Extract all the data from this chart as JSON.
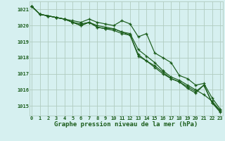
{
  "title": "Graphe pression niveau de la mer (hPa)",
  "background_color": "#d6f0f0",
  "grid_color": "#b0ccc0",
  "line_color": "#1a5c1a",
  "x_ticks": [
    0,
    1,
    2,
    3,
    4,
    5,
    6,
    7,
    8,
    9,
    10,
    11,
    12,
    13,
    14,
    15,
    16,
    17,
    18,
    19,
    20,
    21,
    22,
    23
  ],
  "ylim": [
    1014.4,
    1021.5
  ],
  "yticks": [
    1015,
    1016,
    1017,
    1018,
    1019,
    1020,
    1021
  ],
  "series": [
    [
      1021.2,
      1020.7,
      1020.6,
      1020.5,
      1020.4,
      1020.3,
      1020.2,
      1020.4,
      1020.2,
      1020.1,
      1020.0,
      1020.3,
      1020.1,
      1019.3,
      1019.5,
      1018.3,
      1018.0,
      1017.7,
      1016.9,
      1016.7,
      1016.3,
      1016.4,
      1015.5,
      1014.8
    ],
    [
      1021.2,
      1020.7,
      1020.6,
      1020.5,
      1020.4,
      1020.2,
      1020.1,
      1020.2,
      1020.0,
      1019.9,
      1019.8,
      1019.6,
      1019.5,
      1018.5,
      1018.1,
      1017.7,
      1017.2,
      1016.8,
      1016.6,
      1016.3,
      1016.0,
      1015.7,
      1015.3,
      1014.7
    ],
    [
      1021.2,
      1020.7,
      1020.6,
      1020.5,
      1020.4,
      1020.2,
      1020.0,
      1020.2,
      1019.9,
      1019.8,
      1019.7,
      1019.5,
      1019.4,
      1018.2,
      1017.8,
      1017.5,
      1017.1,
      1016.7,
      1016.5,
      1016.2,
      1015.9,
      1016.3,
      1015.2,
      1014.6
    ],
    [
      1021.2,
      1020.7,
      1020.6,
      1020.5,
      1020.4,
      1020.2,
      1020.0,
      1020.2,
      1019.9,
      1019.8,
      1019.8,
      1019.6,
      1019.4,
      1018.1,
      1017.8,
      1017.4,
      1017.0,
      1016.7,
      1016.5,
      1016.1,
      1015.8,
      1016.3,
      1015.2,
      1014.7
    ]
  ],
  "title_fontsize": 6.5,
  "tick_fontsize": 5.0,
  "title_color": "#1a5c1a"
}
